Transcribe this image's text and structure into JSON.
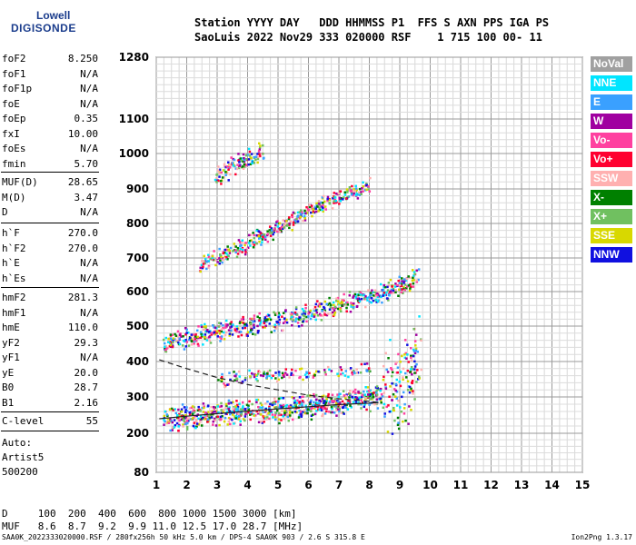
{
  "logo": {
    "line1": "Lowell",
    "line2": "DIGISONDE"
  },
  "header": {
    "row1": "Station YYYY DAY   DDD HHMMSS P1  FFS S AXN PPS IGA PS",
    "row2": "SaoLuis 2022 Nov29 333 020000 RSF    1 715 100 00- 11"
  },
  "params_group1": [
    {
      "name": "foF2",
      "value": "8.250"
    },
    {
      "name": "foF1",
      "value": "N/A"
    },
    {
      "name": "foF1p",
      "value": "N/A"
    },
    {
      "name": "foE",
      "value": "N/A"
    },
    {
      "name": "foEp",
      "value": "0.35"
    },
    {
      "name": "fxI",
      "value": "10.00"
    },
    {
      "name": "foEs",
      "value": "N/A"
    },
    {
      "name": "fmin",
      "value": "5.70"
    }
  ],
  "params_group2": [
    {
      "name": "MUF(D)",
      "value": "28.65"
    },
    {
      "name": "M(D)",
      "value": "3.47"
    },
    {
      "name": "D",
      "value": "N/A"
    }
  ],
  "params_group3": [
    {
      "name": "h`F",
      "value": "270.0"
    },
    {
      "name": "h`F2",
      "value": "270.0"
    },
    {
      "name": "h`E",
      "value": "N/A"
    },
    {
      "name": "h`Es",
      "value": "N/A"
    }
  ],
  "params_group4": [
    {
      "name": "hmF2",
      "value": "281.3"
    },
    {
      "name": "hmF1",
      "value": "N/A"
    },
    {
      "name": "hmE",
      "value": "110.0"
    },
    {
      "name": "yF2",
      "value": "29.3"
    },
    {
      "name": "yF1",
      "value": "N/A"
    },
    {
      "name": "yE",
      "value": "20.0"
    },
    {
      "name": "B0",
      "value": "28.7"
    },
    {
      "name": "B1",
      "value": "2.16"
    }
  ],
  "clevel": {
    "name": "C-level",
    "value": "55"
  },
  "auto": {
    "line1": "Auto:",
    "line2": "Artist5",
    "line3": "500200"
  },
  "muf_table": {
    "d_row": "D     100  200  400  600  800 1000 1500 3000 [km]",
    "muf_row": "MUF   8.6  8.7  9.2  9.9 11.0 12.5 17.0 28.7 [MHz]"
  },
  "footer": {
    "left": "SAA0K_2022333020000.RSF / 280fx256h 50 kHz 5.0 km / DPS-4 SAA0K 903 / 2.6 S 315.8 E",
    "right": "Ion2Png 1.3.17"
  },
  "legend": [
    {
      "label": "NoVal",
      "color": "#a0a0a0"
    },
    {
      "label": "NNE",
      "color": "#00e5ff"
    },
    {
      "label": "E",
      "color": "#3aa0ff"
    },
    {
      "label": "W",
      "color": "#a000a0"
    },
    {
      "label": "Vo-",
      "color": "#ff40a0"
    },
    {
      "label": "Vo+",
      "color": "#ff0030"
    },
    {
      "label": "SSW",
      "color": "#ffb0b0"
    },
    {
      "label": "X-",
      "color": "#008000"
    },
    {
      "label": "X+",
      "color": "#70c060"
    },
    {
      "label": "SSE",
      "color": "#d8d800"
    },
    {
      "label": "NNW",
      "color": "#1010e0"
    }
  ],
  "chart_data": {
    "type": "scatter",
    "xlabel": "",
    "ylabel": "",
    "xlim": [
      1,
      15
    ],
    "ylim": [
      80,
      1280
    ],
    "x_ticks": [
      "1",
      "2",
      "3",
      "4",
      "5",
      "6",
      "7",
      "8",
      "9",
      "10",
      "11",
      "12",
      "13",
      "14",
      "15"
    ],
    "y_ticks": [
      "80",
      "200",
      "300",
      "400",
      "500",
      "600",
      "700",
      "800",
      "900",
      "1000",
      "1100",
      "1280"
    ],
    "y_tick_values": [
      80,
      200,
      300,
      400,
      500,
      600,
      700,
      800,
      900,
      1000,
      1100,
      1280
    ],
    "grid": true,
    "series": [
      {
        "points": [
          [
            1.2,
            240
          ],
          [
            2,
            248
          ],
          [
            3,
            255
          ],
          [
            4,
            262
          ],
          [
            5,
            268
          ],
          [
            6,
            276
          ],
          [
            7,
            286
          ],
          [
            8,
            300
          ],
          [
            8.5,
            320
          ],
          [
            9,
            340
          ],
          [
            9.5,
            380
          ],
          [
            9.7,
            420
          ]
        ]
      },
      {
        "points": [
          [
            1.2,
            450
          ],
          [
            2,
            470
          ],
          [
            3,
            490
          ],
          [
            4,
            505
          ],
          [
            5,
            520
          ],
          [
            6,
            540
          ],
          [
            7,
            565
          ],
          [
            8,
            590
          ],
          [
            9,
            620
          ],
          [
            9.6,
            650
          ]
        ]
      },
      {
        "points": [
          [
            2.4,
            680
          ],
          [
            3,
            705
          ],
          [
            4,
            745
          ],
          [
            5,
            790
          ],
          [
            6,
            840
          ],
          [
            7,
            880
          ],
          [
            8,
            910
          ]
        ]
      },
      {
        "points": [
          [
            2.9,
            930
          ],
          [
            3.5,
            970
          ],
          [
            4,
            990
          ],
          [
            4.5,
            1010
          ]
        ]
      },
      {
        "points": [
          [
            3,
            350
          ],
          [
            4,
            360
          ],
          [
            5,
            365
          ],
          [
            6,
            370
          ],
          [
            7,
            375
          ],
          [
            8,
            380
          ]
        ]
      }
    ],
    "trace_dashed": [
      [
        1.1,
        405
      ],
      [
        2,
        380
      ],
      [
        3,
        355
      ],
      [
        4,
        335
      ],
      [
        5,
        320
      ],
      [
        6,
        305
      ],
      [
        7,
        295
      ],
      [
        8,
        288
      ],
      [
        8.3,
        285
      ]
    ],
    "trace_solid": [
      [
        1.1,
        240
      ],
      [
        2,
        247
      ],
      [
        3,
        254
      ],
      [
        4,
        261
      ],
      [
        5,
        267
      ],
      [
        6,
        273
      ],
      [
        7,
        279
      ],
      [
        8,
        283
      ],
      [
        8.3,
        285
      ]
    ]
  }
}
